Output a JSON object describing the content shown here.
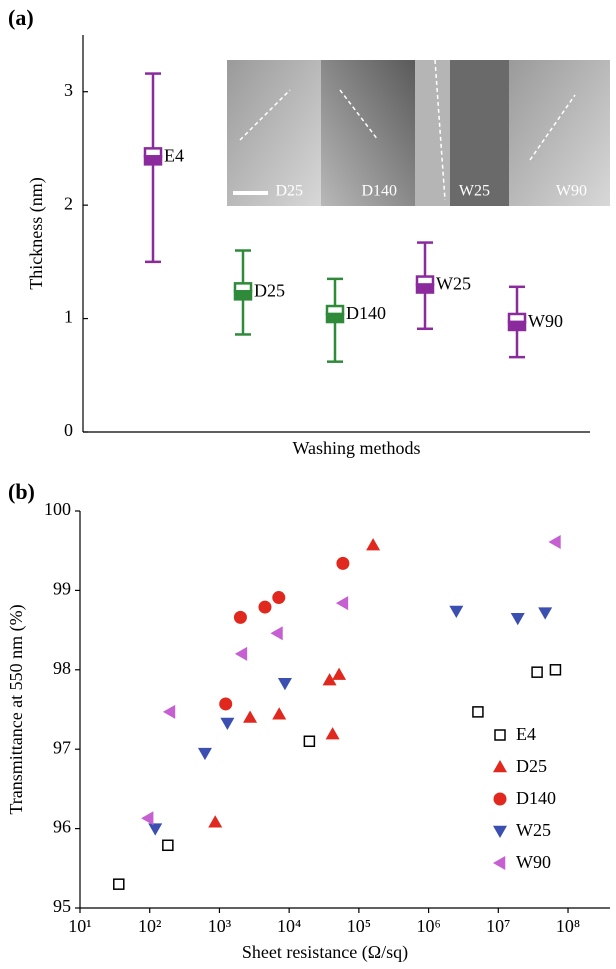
{
  "chart_data": [
    {
      "type": "errorbar",
      "panel": "(a)",
      "ylabel": "Thickness (nm)",
      "xlabel": "Washing methods",
      "categories": [
        "E4",
        "D25",
        "D140",
        "W25",
        "W90"
      ],
      "values": [
        2.43,
        1.24,
        1.04,
        1.3,
        0.97
      ],
      "lower": [
        1.5,
        0.86,
        0.62,
        0.91,
        0.66
      ],
      "upper": [
        3.16,
        1.6,
        1.35,
        1.67,
        1.28
      ],
      "colors": [
        "#8b2a9c",
        "#2f8a3a",
        "#2f8a3a",
        "#8b2a9c",
        "#8b2a9c"
      ],
      "ylim": [
        0,
        3.5
      ],
      "yticks": [
        0,
        1,
        2,
        3
      ],
      "inset_labels": [
        "D25",
        "D140",
        "W25",
        "W90"
      ]
    },
    {
      "type": "scatter",
      "panel": "(b)",
      "ylabel": "Transmittance at 550 nm (%)",
      "xlabel": "Sheet resistance (Ω/sq)",
      "xscale": "log",
      "xlim": [
        10,
        400000000
      ],
      "xticks": [
        {
          "value": 10,
          "label": "10¹"
        },
        {
          "value": 100,
          "label": "10²"
        },
        {
          "value": 1000,
          "label": "10³"
        },
        {
          "value": 10000,
          "label": "10⁴"
        },
        {
          "value": 100000,
          "label": "10⁵"
        },
        {
          "value": 1000000,
          "label": "10⁶"
        },
        {
          "value": 10000000,
          "label": "10⁷"
        },
        {
          "value": 100000000,
          "label": "10⁸"
        }
      ],
      "ylim": [
        95,
        100
      ],
      "yticks": [
        95,
        96,
        97,
        98,
        99,
        100
      ],
      "legend": "lower right",
      "series": [
        {
          "name": "E4",
          "color": "#000000",
          "marker": "square-open",
          "x": [
            36,
            182,
            19500,
            5100000,
            36000000,
            66000000
          ],
          "values": [
            95.3,
            95.79,
            97.1,
            97.47,
            97.97,
            98.0
          ]
        },
        {
          "name": "D25",
          "color": "#e0281e",
          "marker": "triangle-up",
          "x": [
            870,
            2750,
            7200,
            38000,
            52000,
            42000,
            160000
          ],
          "values": [
            96.08,
            97.4,
            97.44,
            97.87,
            97.94,
            97.19,
            99.57
          ]
        },
        {
          "name": "D140",
          "color": "#e0281e",
          "marker": "circle",
          "x": [
            1230,
            2000,
            4500,
            7100,
            59000
          ],
          "values": [
            97.57,
            98.66,
            98.79,
            98.91,
            99.34
          ]
        },
        {
          "name": "W25",
          "color": "#3a4fb0",
          "marker": "triangle-down",
          "x": [
            120,
            620,
            1300,
            8700,
            2500000,
            19000000,
            47000000
          ],
          "values": [
            96.0,
            96.95,
            97.33,
            97.83,
            98.74,
            98.65,
            98.72
          ]
        },
        {
          "name": "W90",
          "color": "#c55fd2",
          "marker": "triangle-left",
          "x": [
            95,
            195,
            2100,
            6800,
            59000,
            66000000
          ],
          "values": [
            96.13,
            97.47,
            98.2,
            98.46,
            98.84,
            99.61
          ]
        }
      ]
    }
  ]
}
